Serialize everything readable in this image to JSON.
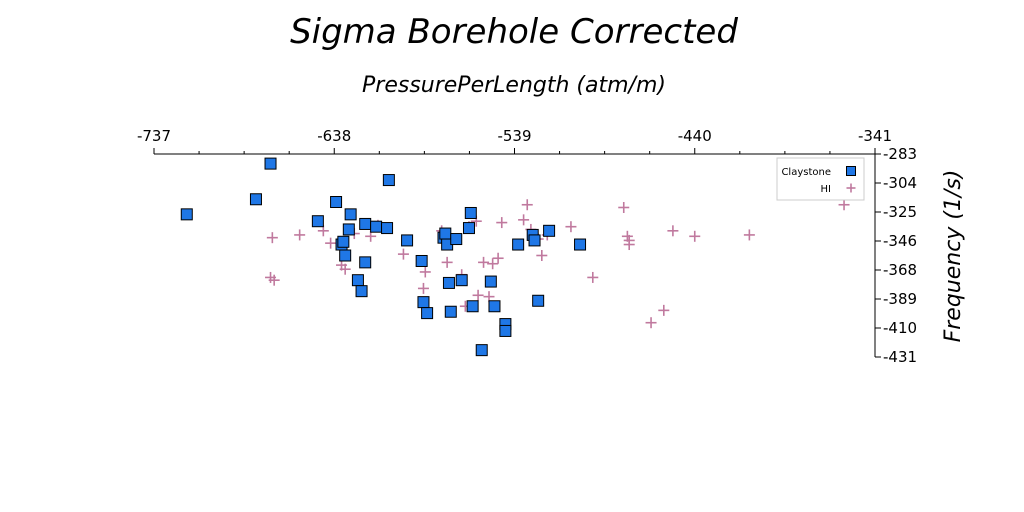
{
  "chart_data": {
    "type": "scatter",
    "title": "Sigma Borehole Corrected",
    "xlabel": "PressurePerLength (atm/m)",
    "ylabel": "Frequency (1/s)",
    "x_axis_position": "top",
    "y_axis_position": "right",
    "xlim": [
      -737,
      -341
    ],
    "ylim": [
      -431,
      -283
    ],
    "x_ticks": [
      "-737",
      "-638",
      "-539",
      "-440",
      "-341"
    ],
    "y_ticks": [
      "-283",
      "-304",
      "-325",
      "-346",
      "-368",
      "-389",
      "-410",
      "-431"
    ],
    "grid": false,
    "legend_position": "top-right",
    "series": [
      {
        "name": "Claystone",
        "marker": "square",
        "color": "#1f77e6",
        "edge_color": "#000000",
        "points": [
          [
            -719,
            -327
          ],
          [
            -681,
            -316
          ],
          [
            -673,
            -290
          ],
          [
            -647,
            -332
          ],
          [
            -637,
            -318
          ],
          [
            -634,
            -349
          ],
          [
            -633,
            -347
          ],
          [
            -632,
            -357
          ],
          [
            -629,
            -327
          ],
          [
            -630,
            -338
          ],
          [
            -625,
            -375
          ],
          [
            -623,
            -383
          ],
          [
            -621,
            -362
          ],
          [
            -621,
            -334
          ],
          [
            -615,
            -336
          ],
          [
            -609,
            -337
          ],
          [
            -608,
            -302
          ],
          [
            -598,
            -346
          ],
          [
            -590,
            -361
          ],
          [
            -589,
            -391
          ],
          [
            -587,
            -399
          ],
          [
            -578,
            -344
          ],
          [
            -577,
            -341
          ],
          [
            -576,
            -349
          ],
          [
            -575,
            -377
          ],
          [
            -574,
            -398
          ],
          [
            -571,
            -345
          ],
          [
            -568,
            -375
          ],
          [
            -564,
            -337
          ],
          [
            -563,
            -326
          ],
          [
            -562,
            -394
          ],
          [
            -557,
            -426
          ],
          [
            -552,
            -376
          ],
          [
            -550,
            -394
          ],
          [
            -544,
            -407
          ],
          [
            -544,
            -412
          ],
          [
            -537,
            -349
          ],
          [
            -529,
            -342
          ],
          [
            -528,
            -346
          ],
          [
            -526,
            -390
          ],
          [
            -520,
            -339
          ],
          [
            -503,
            -349
          ]
        ]
      },
      {
        "name": "HI",
        "marker": "plus",
        "color": "#c0799e",
        "points": [
          [
            -672,
            -344
          ],
          [
            -673,
            -373
          ],
          [
            -671,
            -375
          ],
          [
            -657,
            -342
          ],
          [
            -644,
            -339
          ],
          [
            -640,
            -348
          ],
          [
            -634,
            -352
          ],
          [
            -634,
            -364
          ],
          [
            -632,
            -367
          ],
          [
            -627,
            -341
          ],
          [
            -618,
            -343
          ],
          [
            -614,
            -335
          ],
          [
            -600,
            -356
          ],
          [
            -589,
            -381
          ],
          [
            -588,
            -369
          ],
          [
            -579,
            -339
          ],
          [
            -576,
            -362
          ],
          [
            -568,
            -371
          ],
          [
            -566,
            -394
          ],
          [
            -564,
            -336
          ],
          [
            -560,
            -332
          ],
          [
            -559,
            -386
          ],
          [
            -556,
            -362
          ],
          [
            -553,
            -387
          ],
          [
            -551,
            -363
          ],
          [
            -548,
            -359
          ],
          [
            -546,
            -333
          ],
          [
            -534,
            -331
          ],
          [
            -532,
            -320
          ],
          [
            -530,
            -338
          ],
          [
            -526,
            -345
          ],
          [
            -524,
            -357
          ],
          [
            -521,
            -342
          ],
          [
            -508,
            -336
          ],
          [
            -496,
            -373
          ],
          [
            -479,
            -322
          ],
          [
            -477,
            -343
          ],
          [
            -476,
            -346
          ],
          [
            -476,
            -349
          ],
          [
            -464,
            -406
          ],
          [
            -457,
            -397
          ],
          [
            -452,
            -339
          ],
          [
            -440,
            -343
          ],
          [
            -410,
            -342
          ],
          [
            -358,
            -320
          ]
        ]
      }
    ]
  }
}
